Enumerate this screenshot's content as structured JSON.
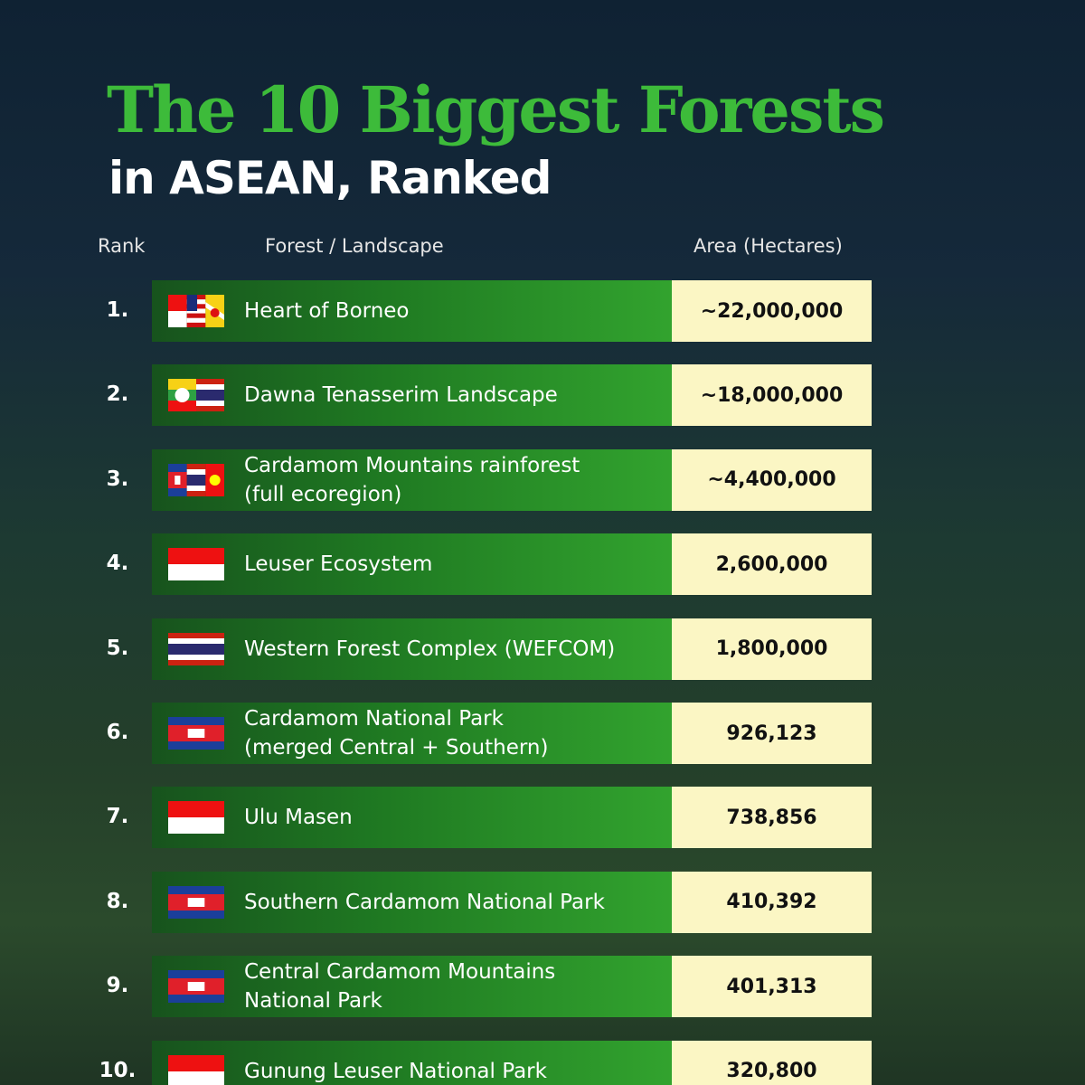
{
  "header": {
    "title": "The 10 Biggest Forests",
    "subtitle": "in ASEAN, Ranked"
  },
  "table": {
    "columns": [
      "Rank",
      "Forest / Landscape",
      "Area (Hectares)"
    ],
    "rows": [
      {
        "rank": "1.",
        "name": [
          "Heart of Borneo"
        ],
        "area": "~22,000,000"
      },
      {
        "rank": "2.",
        "name": [
          "Dawna Tenasserim Landscape"
        ],
        "area": "~18,000,000"
      },
      {
        "rank": "3.",
        "name": [
          "Cardamom Mountains rainforest",
          "(full ecoregion)"
        ],
        "area": "~4,400,000"
      },
      {
        "rank": "4.",
        "name": [
          "Leuser Ecosystem"
        ],
        "area": "2,600,000"
      },
      {
        "rank": "5.",
        "name": [
          "Western Forest Complex (WEFCOM)"
        ],
        "area": "1,800,000"
      },
      {
        "rank": "6.",
        "name": [
          "Cardamom National Park",
          "(merged Central + Southern)"
        ],
        "area": "926,123"
      },
      {
        "rank": "7.",
        "name": [
          "Ulu Masen"
        ],
        "area": "738,856"
      },
      {
        "rank": "8.",
        "name": [
          "Southern Cardamom National Park"
        ],
        "area": "410,392"
      },
      {
        "rank": "9.",
        "name": [
          "Central Cardamom Mountains",
          "National Park"
        ],
        "area": "401,313"
      },
      {
        "rank": "10.",
        "name": [
          "Gunung Leuser National Park"
        ],
        "area": "320,800"
      }
    ]
  }
}
